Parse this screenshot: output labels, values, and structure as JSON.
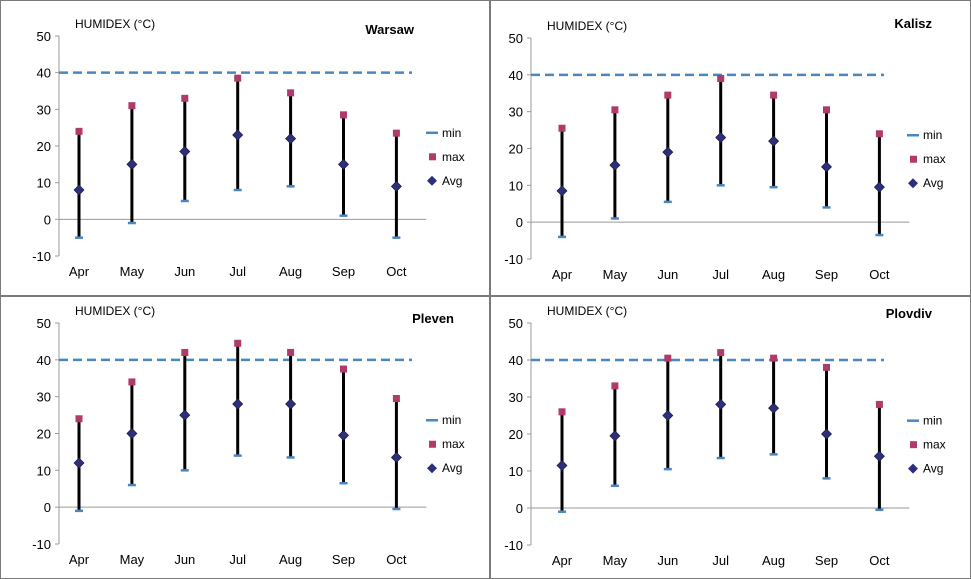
{
  "colors": {
    "min": "#4a86c0",
    "max": "#b03a6a",
    "avg": "#2e2f7a",
    "line": "#000000",
    "frame": "#7a7a7a"
  },
  "legend": {
    "min": "min",
    "max": "max",
    "avg": "Avg"
  },
  "chart_data": [
    {
      "type": "line",
      "title": "Warsaw",
      "ylabel": "HUMIDEX (°C)",
      "ylim": [
        -10,
        50
      ],
      "yticks": [
        -10,
        0,
        10,
        20,
        30,
        40,
        50
      ],
      "categories": [
        "Apr",
        "May",
        "Jun",
        "Jul",
        "Aug",
        "Sep",
        "Oct"
      ],
      "reference_line": 40,
      "series": [
        {
          "name": "min",
          "values": [
            -5,
            -1,
            5,
            8,
            9,
            1,
            -5
          ]
        },
        {
          "name": "max",
          "values": [
            24,
            31,
            33,
            38.5,
            34.5,
            28.5,
            23.5
          ]
        },
        {
          "name": "Avg",
          "values": [
            8,
            15,
            18.5,
            23,
            22,
            15,
            9
          ]
        }
      ]
    },
    {
      "type": "line",
      "title": "Kalisz",
      "ylabel": "HUMIDEX (°C)",
      "ylim": [
        -10,
        50
      ],
      "yticks": [
        -10,
        0,
        10,
        20,
        30,
        40,
        50
      ],
      "categories": [
        "Apr",
        "May",
        "Jun",
        "Jul",
        "Aug",
        "Sep",
        "Oct"
      ],
      "reference_line": 40,
      "series": [
        {
          "name": "min",
          "values": [
            -4,
            1,
            5.5,
            10,
            9.5,
            4,
            -3.5
          ]
        },
        {
          "name": "max",
          "values": [
            25.5,
            30.5,
            34.5,
            39,
            34.5,
            30.5,
            24
          ]
        },
        {
          "name": "Avg",
          "values": [
            8.5,
            15.5,
            19,
            23,
            22,
            15,
            9.5
          ]
        }
      ]
    },
    {
      "type": "line",
      "title": "Pleven",
      "ylabel": "HUMIDEX (°C)",
      "ylim": [
        -10,
        50
      ],
      "yticks": [
        -10,
        0,
        10,
        20,
        30,
        40,
        50
      ],
      "categories": [
        "Apr",
        "May",
        "Jun",
        "Jul",
        "Aug",
        "Sep",
        "Oct"
      ],
      "reference_line": 40,
      "series": [
        {
          "name": "min",
          "values": [
            -1,
            6,
            10,
            14,
            13.5,
            6.5,
            -0.5
          ]
        },
        {
          "name": "max",
          "values": [
            24,
            34,
            42,
            44.5,
            42,
            37.5,
            29.5
          ]
        },
        {
          "name": "Avg",
          "values": [
            12,
            20,
            25,
            28,
            28,
            19.5,
            13.5
          ]
        }
      ]
    },
    {
      "type": "line",
      "title": "Plovdiv",
      "ylabel": "HUMIDEX (°C)",
      "ylim": [
        -10,
        50
      ],
      "yticks": [
        -10,
        0,
        10,
        20,
        30,
        40,
        50
      ],
      "categories": [
        "Apr",
        "May",
        "Jun",
        "Jul",
        "Aug",
        "Sep",
        "Oct"
      ],
      "reference_line": 40,
      "series": [
        {
          "name": "min",
          "values": [
            -1,
            6,
            10.5,
            13.5,
            14.5,
            8,
            -0.5
          ]
        },
        {
          "name": "max",
          "values": [
            26,
            33,
            40.5,
            42,
            40.5,
            38,
            28
          ]
        },
        {
          "name": "Avg",
          "values": [
            11.5,
            19.5,
            25,
            28,
            27,
            20,
            14
          ]
        }
      ]
    }
  ]
}
